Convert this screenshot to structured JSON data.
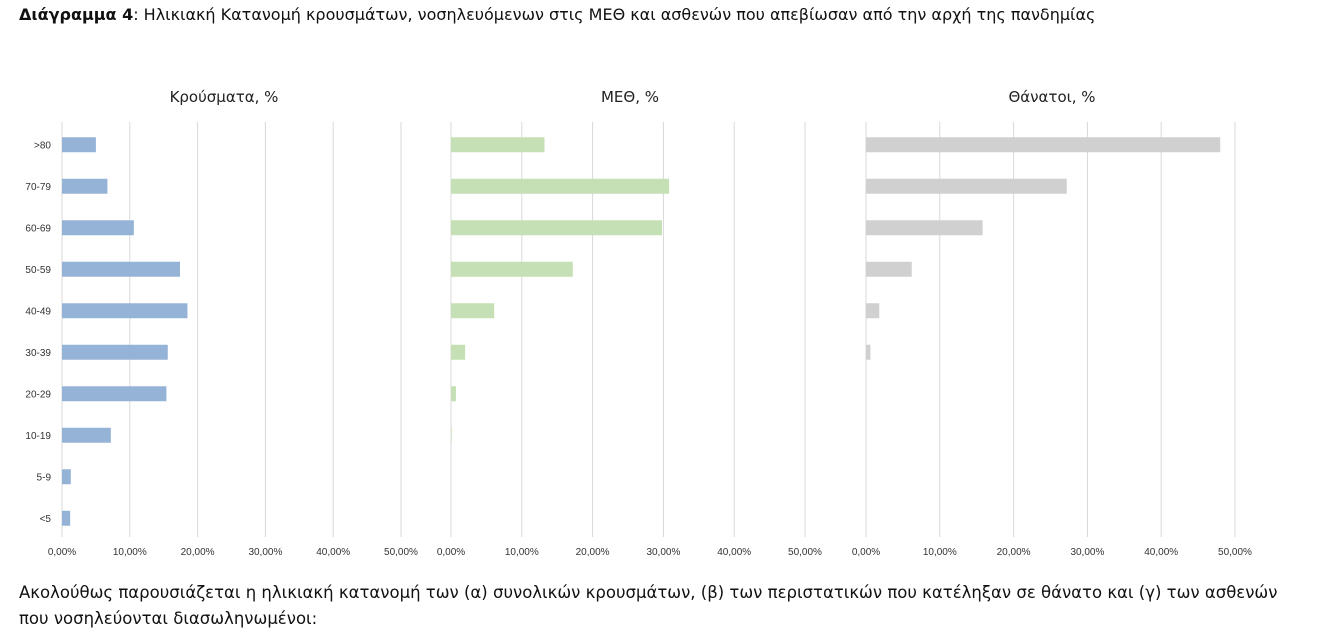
{
  "header": {
    "label_bold": "Διάγραμμα 4",
    "label_rest": ": Ηλικιακή Κατανομή κρουσμάτων, νοσηλευόμενων στις ΜΕΘ και ασθενών που απεβίωσαν από την αρχή της πανδημίας"
  },
  "footer": {
    "text": "Ακολούθως παρουσιάζεται η ηλικιακή κατανομή των (α) συνολικών κρουσμάτων, (β) των περιστατικών που κατέληξαν σε θάνατο και (γ) των ασθενών που νοσηλεύονται διασωληνωμένοι:"
  },
  "chart_data": [
    {
      "type": "bar",
      "orientation": "horizontal",
      "title": "Κρούσματα, %",
      "categories": [
        ">80",
        "70-79",
        "60-69",
        "50-59",
        "40-49",
        "30-39",
        "20-29",
        "10-19",
        "5-9",
        "<5"
      ],
      "values": [
        5.0,
        6.7,
        10.6,
        17.4,
        18.5,
        15.6,
        15.4,
        7.2,
        1.3,
        1.2
      ],
      "xlim": [
        0,
        50
      ],
      "ticks": [
        "0,00%",
        "10,00%",
        "20,00%",
        "30,00%",
        "40,00%",
        "50,00%"
      ],
      "color": "#95b3d7",
      "grid": true
    },
    {
      "type": "bar",
      "orientation": "horizontal",
      "title": "ΜΕΘ, %",
      "categories": [
        ">80",
        "70-79",
        "60-69",
        "50-59",
        "40-49",
        "30-39",
        "20-29",
        "10-19",
        "5-9",
        "<5"
      ],
      "values": [
        13.2,
        30.8,
        29.8,
        17.2,
        6.1,
        2.0,
        0.7,
        0.1,
        0,
        0
      ],
      "xlim": [
        0,
        50
      ],
      "ticks": [
        "0,00%",
        "10,00%",
        "20,00%",
        "30,00%",
        "40,00%",
        "50,00%"
      ],
      "color": "#c5e0b4",
      "grid": true
    },
    {
      "type": "bar",
      "orientation": "horizontal",
      "title": "Θάνατοι, %",
      "categories": [
        ">80",
        "70-79",
        "60-69",
        "50-59",
        "40-49",
        "30-39",
        "20-29",
        "10-19",
        "5-9",
        "<5"
      ],
      "values": [
        48.0,
        27.2,
        15.8,
        6.2,
        1.8,
        0.6,
        0,
        0,
        0,
        0
      ],
      "xlim": [
        0,
        50
      ],
      "ticks": [
        "0,00%",
        "10,00%",
        "20,00%",
        "30,00%",
        "40,00%",
        "50,00%"
      ],
      "color": "#d0d0d0",
      "grid": true
    }
  ]
}
